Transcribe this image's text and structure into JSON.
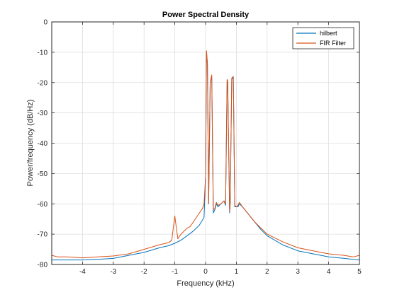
{
  "chart_data": {
    "type": "line",
    "title": "Power Spectral Density",
    "xlabel": "Frequency (kHz)",
    "ylabel": "Power/frequency (dB/Hz)",
    "xlim": [
      -5,
      5
    ],
    "ylim": [
      -80,
      0
    ],
    "xticks": [
      -4,
      -3,
      -2,
      -1,
      0,
      1,
      2,
      3,
      4,
      5
    ],
    "yticks": [
      0,
      -10,
      -20,
      -30,
      -40,
      -50,
      -60,
      -70,
      -80
    ],
    "grid": true,
    "legend_position": "top-right",
    "series": [
      {
        "name": "hilbert",
        "color": "#0072BD",
        "x": [
          -5,
          -4.5,
          -4,
          -3.5,
          -3,
          -2.5,
          -2,
          -1.5,
          -1.2,
          -1.0,
          -0.8,
          -0.6,
          -0.4,
          -0.2,
          -0.05,
          0.0,
          0.03,
          0.06,
          0.1,
          0.15,
          0.2,
          0.25,
          0.3,
          0.35,
          0.4,
          0.5,
          0.6,
          0.65,
          0.7,
          0.72,
          0.78,
          0.8,
          0.85,
          0.9,
          0.95,
          1.0,
          1.05,
          1.1,
          1.2,
          1.4,
          1.6,
          1.8,
          2.0,
          2.5,
          3.0,
          3.5,
          4.0,
          4.5,
          5.0
        ],
        "y": [
          -78.5,
          -78.5,
          -78.5,
          -78.3,
          -78,
          -77,
          -76,
          -74.5,
          -73.8,
          -73,
          -72,
          -70.5,
          -69,
          -67,
          -64.5,
          -51,
          -10,
          -14,
          -60,
          -20,
          -18,
          -63,
          -62,
          -60,
          -61,
          -60,
          -59,
          -60.5,
          -19,
          -20,
          -63,
          -60,
          -19,
          -18,
          -61,
          -61,
          -61,
          -60,
          -61,
          -63.5,
          -66,
          -68.5,
          -70.5,
          -73.5,
          -75.5,
          -76.5,
          -77.5,
          -78,
          -78.5
        ]
      },
      {
        "name": "FIR Filter",
        "color": "#D95319",
        "x": [
          -5,
          -4.8,
          -4.5,
          -4,
          -3.5,
          -3,
          -2.5,
          -2,
          -1.5,
          -1.2,
          -1.1,
          -1.05,
          -1.0,
          -0.95,
          -0.9,
          -0.8,
          -0.7,
          -0.6,
          -0.5,
          -0.4,
          -0.3,
          -0.2,
          -0.1,
          -0.05,
          0.0,
          0.03,
          0.06,
          0.1,
          0.15,
          0.2,
          0.25,
          0.3,
          0.35,
          0.4,
          0.5,
          0.6,
          0.65,
          0.7,
          0.72,
          0.78,
          0.8,
          0.85,
          0.9,
          0.95,
          1.0,
          1.05,
          1.1,
          1.2,
          1.4,
          1.6,
          1.8,
          2.0,
          2.5,
          3.0,
          3.5,
          4.0,
          4.5,
          4.8,
          5.0
        ],
        "y": [
          -77,
          -77.5,
          -77.5,
          -77.8,
          -77.5,
          -77.2,
          -76.5,
          -75,
          -73.5,
          -72.8,
          -72,
          -68,
          -64,
          -68,
          -71.5,
          -70,
          -69,
          -68,
          -67.5,
          -66,
          -64.5,
          -63,
          -61.5,
          -60,
          -51,
          -9.5,
          -13.5,
          -60,
          -20,
          -17.5,
          -62,
          -61.5,
          -59.5,
          -60.5,
          -60,
          -59,
          -60,
          -19,
          -19.5,
          -62.5,
          -59.5,
          -18.5,
          -18,
          -60.5,
          -61,
          -60.5,
          -59.5,
          -61,
          -63.5,
          -66,
          -68,
          -70,
          -72.5,
          -74.5,
          -75.5,
          -76.5,
          -77,
          -77.5,
          -77
        ]
      }
    ]
  }
}
